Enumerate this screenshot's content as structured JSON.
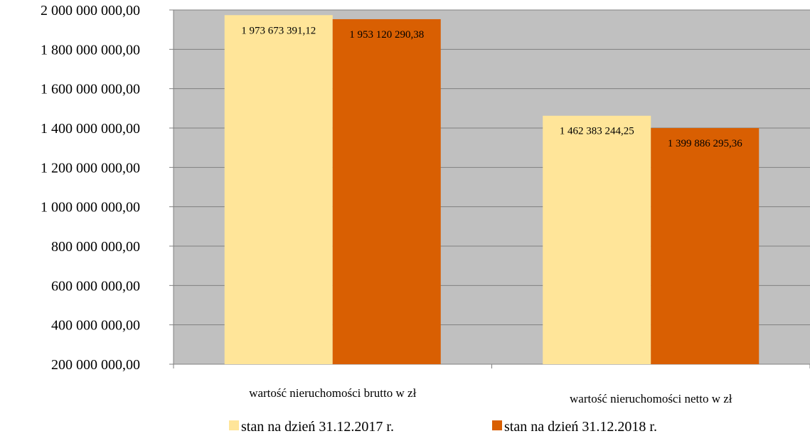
{
  "chart_data": {
    "type": "bar",
    "title": "",
    "xlabel": "",
    "ylabel": "",
    "categories": [
      "wartość nieruchomości brutto w zł",
      "wartość nieruchomości netto w zł"
    ],
    "series": [
      {
        "name": "stan  na dzień  31.12.2017 r.",
        "color": "#FFE599",
        "values": [
          1973673391.12,
          1462383244.25
        ],
        "value_labels": [
          "1 973 673 391,12",
          "1 462 383 244,25"
        ]
      },
      {
        "name": "stan  na dzień  31.12.2018 r.",
        "color": "#D95F02",
        "values": [
          1953120290.38,
          1399886295.36
        ],
        "value_labels": [
          "1 953 120 290,38",
          "1 399 886 295,36"
        ]
      }
    ],
    "ylim": [
      200000000,
      2000000000
    ],
    "yticks": [
      200000000,
      400000000,
      600000000,
      800000000,
      1000000000,
      1200000000,
      1400000000,
      1600000000,
      1800000000,
      2000000000
    ],
    "ytick_labels": [
      "200 000 000,00",
      "400 000 000,00",
      "600 000 000,00",
      "800 000 000,00",
      "1 000 000 000,00",
      "1 200 000 000,00",
      "1 400 000 000,00",
      "1 600 000 000,00",
      "1 800 000 000,00",
      "2 000 000 000,00"
    ],
    "plot_background": "#C0C0C0",
    "grid": true,
    "legend_position": "bottom"
  }
}
